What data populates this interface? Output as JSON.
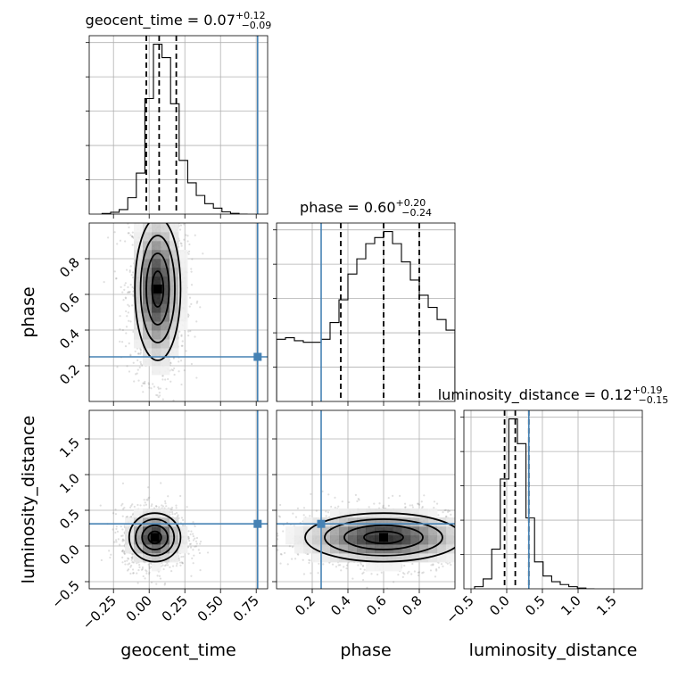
{
  "chart_data": {
    "type": "corner",
    "parameters": [
      {
        "key": "geocent_time",
        "label": "geocent_time",
        "range": [
          -0.42,
          0.83
        ],
        "ticks": [
          -0.25,
          0.0,
          0.25,
          0.5,
          0.75
        ],
        "tick_labels": [
          "−0.25",
          "0.00",
          "0.25",
          "0.50",
          "0.75"
        ],
        "truth": 0.76,
        "title": {
          "prefix": "geocent_time = ",
          "value": "0.07",
          "upper": "+0.12",
          "lower": "−0.09"
        },
        "quantiles": [
          -0.02,
          0.07,
          0.19
        ],
        "hist_edges": [
          -0.33,
          -0.27,
          -0.21,
          -0.15,
          -0.09,
          -0.03,
          0.03,
          0.09,
          0.15,
          0.21,
          0.27,
          0.33,
          0.39,
          0.45,
          0.51,
          0.57,
          0.63,
          0.69
        ],
        "hist_counts": [
          0.8,
          2.5,
          6,
          22,
          55,
          155,
          228,
          210,
          148,
          72,
          42,
          25,
          14,
          8,
          3,
          1,
          0
        ]
      },
      {
        "key": "phase",
        "label": "phase",
        "range": [
          0.0,
          1.0
        ],
        "ticks": [
          0.2,
          0.4,
          0.6,
          0.8
        ],
        "tick_labels": [
          "0.2",
          "0.4",
          "0.6",
          "0.8"
        ],
        "truth": 0.25,
        "title": {
          "prefix": "phase = ",
          "value": "0.60",
          "upper": "+0.20",
          "lower": "−0.24"
        },
        "quantiles": [
          0.36,
          0.6,
          0.8
        ],
        "hist_edges": [
          0.0,
          0.05,
          0.1,
          0.15,
          0.2,
          0.25,
          0.3,
          0.35,
          0.4,
          0.45,
          0.5,
          0.55,
          0.6,
          0.65,
          0.7,
          0.75,
          0.8,
          0.85,
          0.9,
          0.95,
          1.0
        ],
        "hist_counts": [
          205,
          210,
          200,
          195,
          195,
          205,
          260,
          335,
          420,
          470,
          520,
          540,
          560,
          520,
          460,
          400,
          350,
          310,
          270,
          235
        ]
      },
      {
        "key": "luminosity_distance",
        "label": "luminosity_distance",
        "range": [
          -0.6,
          1.9
        ],
        "ticks": [
          -0.5,
          0.0,
          0.5,
          1.0,
          1.5
        ],
        "tick_labels": [
          "−0.5",
          "0.0",
          "0.5",
          "1.0",
          "1.5"
        ],
        "truth": 0.31,
        "title": {
          "prefix": "luminosity_distance = ",
          "value": "0.12",
          "upper": "+0.19",
          "lower": "−0.15"
        },
        "quantiles": [
          -0.03,
          0.12,
          0.31
        ],
        "hist_edges": [
          -0.45,
          -0.33,
          -0.21,
          -0.09,
          0.03,
          0.15,
          0.27,
          0.39,
          0.51,
          0.63,
          0.75,
          0.87,
          0.99,
          1.11,
          1.23
        ],
        "hist_counts": [
          3,
          14,
          56,
          155,
          240,
          205,
          100,
          38,
          18,
          10,
          6,
          3,
          1,
          0
        ]
      }
    ],
    "panels_2d": [
      {
        "x": "geocent_time",
        "y": "phase",
        "center": [
          0.06,
          0.63
        ],
        "spread": [
          0.08,
          0.2
        ],
        "corr": 0
      },
      {
        "x": "geocent_time",
        "y": "luminosity_distance",
        "center": [
          0.04,
          0.12
        ],
        "spread": [
          0.09,
          0.17
        ],
        "corr": 0
      },
      {
        "x": "phase",
        "y": "luminosity_distance",
        "center": [
          0.6,
          0.12
        ],
        "spread": [
          0.22,
          0.17
        ],
        "corr": 0
      }
    ]
  }
}
